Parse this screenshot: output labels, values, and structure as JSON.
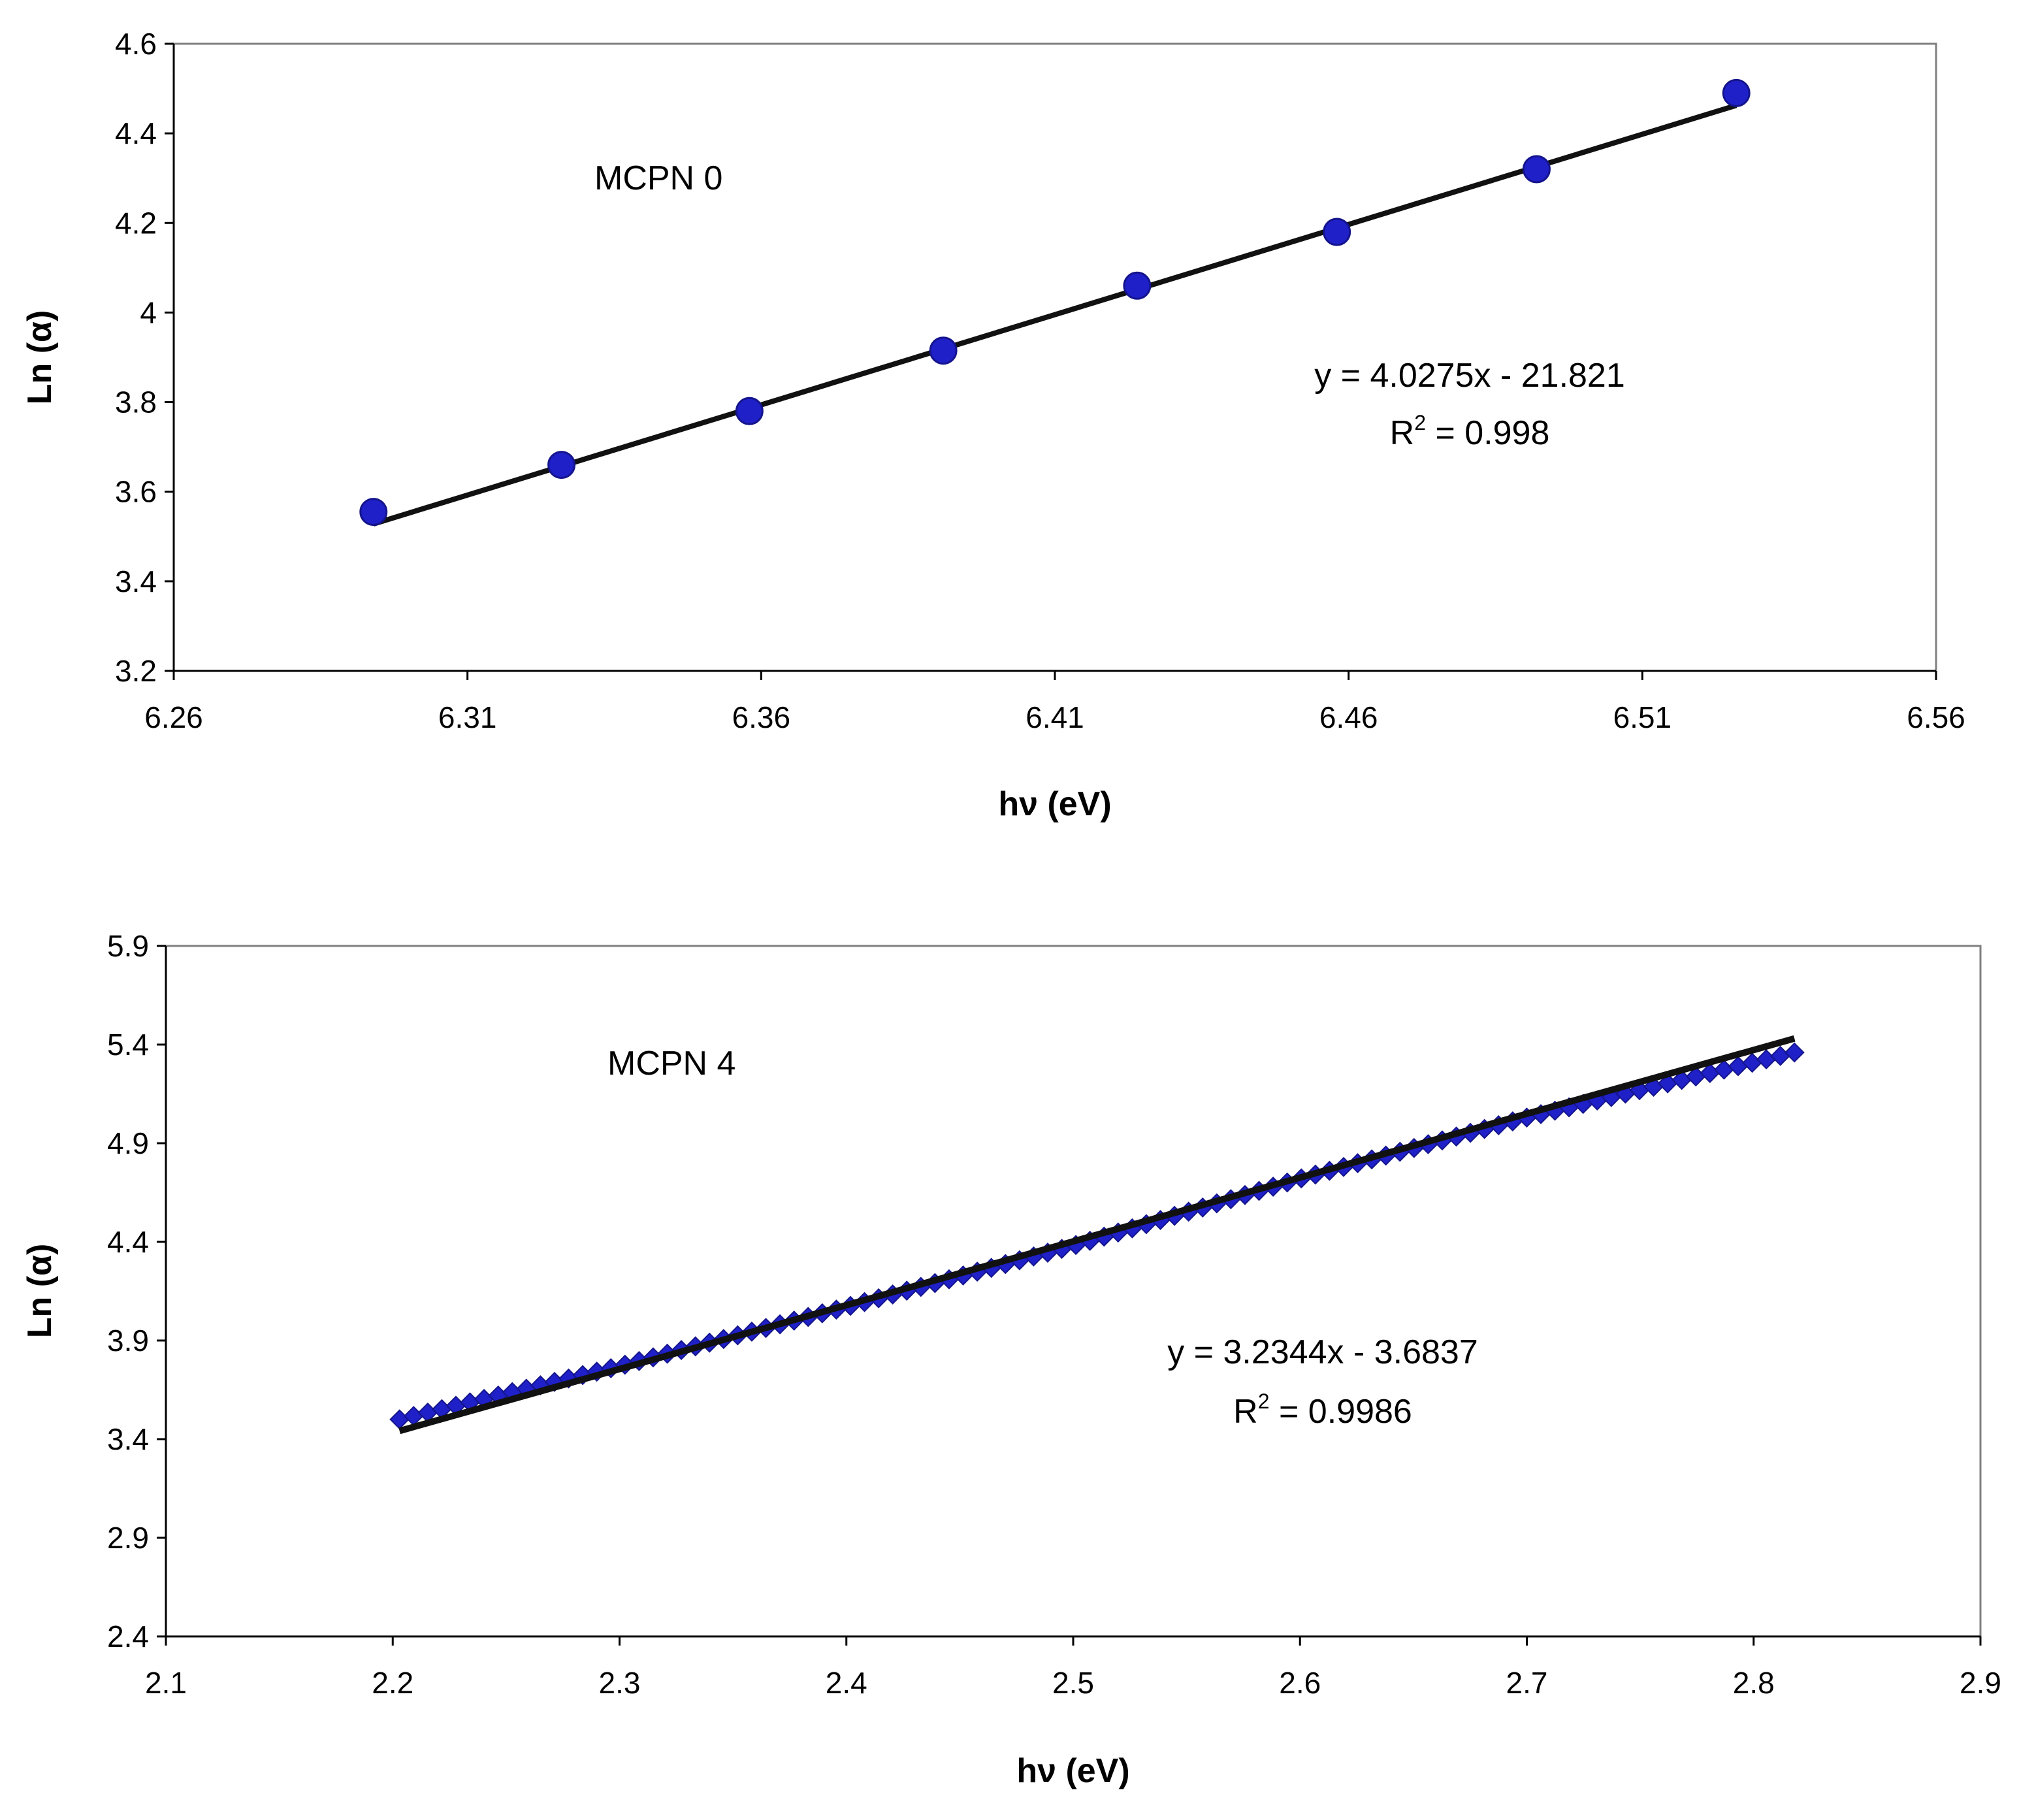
{
  "colors": {
    "marker": "#1f20c8",
    "marker_edge": "#14148c",
    "fit_line": "#111111",
    "axis": "#000000",
    "background": "#ffffff"
  },
  "chart_data": [
    {
      "type": "scatter",
      "marker": "circle",
      "series_label": "MCPN 0",
      "xlabel": "hν (eV)",
      "ylabel": "Ln (α)",
      "xlim": [
        6.26,
        6.56
      ],
      "ylim": [
        3.2,
        4.6
      ],
      "xticks": [
        6.26,
        6.31,
        6.36,
        6.41,
        6.46,
        6.51,
        6.56
      ],
      "yticks": [
        3.2,
        3.4,
        3.6,
        3.8,
        4.0,
        4.2,
        4.4,
        4.6
      ],
      "xtick_labels": [
        "6.26",
        "6.31",
        "6.36",
        "6.41",
        "6.46",
        "6.51",
        "6.56"
      ],
      "ytick_labels": [
        "3.2",
        "3.4",
        "3.6",
        "3.8",
        "4",
        "4.2",
        "4.4",
        "4.6"
      ],
      "x": [
        6.294,
        6.326,
        6.358,
        6.391,
        6.424,
        6.458,
        6.492,
        6.526
      ],
      "y": [
        3.555,
        3.66,
        3.78,
        3.915,
        4.06,
        4.18,
        4.32,
        4.49
      ],
      "fit": {
        "slope": 4.0275,
        "intercept": -21.821,
        "x_range": [
          6.294,
          6.526
        ]
      },
      "equation": "y = 4.0275x - 21.821",
      "r2_prefix": "R",
      "r2_exp": "2",
      "r2_value": " = 0.998"
    },
    {
      "type": "scatter",
      "marker": "diamond",
      "series_label": "MCPN 4",
      "xlabel": "hν (eV)",
      "ylabel": "Ln (α)",
      "xlim": [
        2.1,
        2.9
      ],
      "ylim": [
        2.4,
        5.9
      ],
      "xticks": [
        2.1,
        2.2,
        2.3,
        2.4,
        2.5,
        2.6,
        2.7,
        2.8,
        2.9
      ],
      "yticks": [
        2.4,
        2.9,
        3.4,
        3.9,
        4.4,
        4.9,
        5.4,
        5.9
      ],
      "xtick_labels": [
        "2.1",
        "2.2",
        "2.3",
        "2.4",
        "2.5",
        "2.6",
        "2.7",
        "2.8",
        "2.9"
      ],
      "ytick_labels": [
        "2.4",
        "2.9",
        "3.4",
        "3.9",
        "4.4",
        "4.9",
        "5.4",
        "5.9"
      ],
      "x_start": 2.203,
      "x_end": 2.818,
      "n_points": 100,
      "data_curve_x": [
        2.203,
        2.3,
        2.4,
        2.5,
        2.6,
        2.7,
        2.818
      ],
      "data_curve_y": [
        3.5,
        3.77,
        4.07,
        4.38,
        4.72,
        5.03,
        5.36
      ],
      "fit": {
        "slope": 3.2344,
        "intercept": -3.6837,
        "x_range": [
          2.203,
          2.818
        ]
      },
      "equation": "y = 3.2344x - 3.6837",
      "r2_prefix": "R",
      "r2_exp": "2",
      "r2_value": " = 0.9986"
    }
  ]
}
